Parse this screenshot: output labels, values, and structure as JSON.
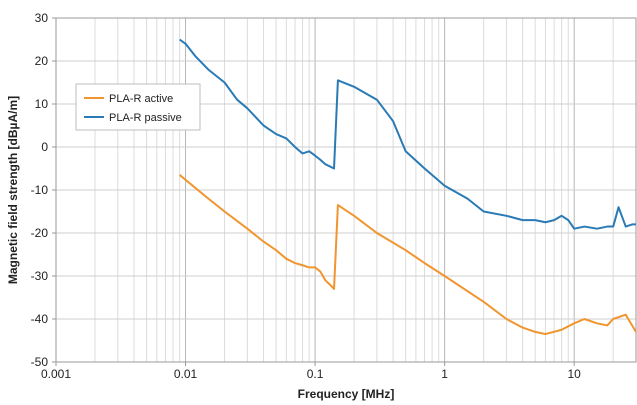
{
  "chart_data": {
    "type": "line",
    "xlabel": "Frequency [MHz]",
    "ylabel": "Magnetic field strength [dBµA/m]",
    "x_scale": "log",
    "xlim": [
      0.001,
      30
    ],
    "ylim": [
      -50,
      30
    ],
    "x_ticks": [
      0.001,
      0.01,
      0.1,
      1,
      10
    ],
    "x_tick_labels": [
      "0.001",
      "0.01",
      "0.1",
      "1",
      "10"
    ],
    "y_ticks": [
      -50,
      -40,
      -30,
      -20,
      -10,
      0,
      10,
      20,
      30
    ],
    "y_tick_labels": [
      "-50",
      "-40",
      "-30",
      "-20",
      "-10",
      "0",
      "10",
      "20",
      "30"
    ],
    "grid": true,
    "legend_position": "upper-left",
    "series": [
      {
        "name": "PLA-R active",
        "color": "#f0952f",
        "x": [
          0.009,
          0.015,
          0.02,
          0.03,
          0.04,
          0.05,
          0.06,
          0.07,
          0.08,
          0.09,
          0.1,
          0.11,
          0.12,
          0.13,
          0.14,
          0.15,
          0.2,
          0.3,
          0.5,
          0.7,
          1,
          2,
          3,
          4,
          5,
          6,
          8,
          10,
          12,
          15,
          18,
          20,
          25,
          30
        ],
        "y": [
          -6.5,
          -12,
          -15,
          -19,
          -22,
          -24,
          -26,
          -27,
          -27.5,
          -28,
          -28,
          -29,
          -31,
          -32,
          -33,
          -13.5,
          -16,
          -20,
          -24,
          -27,
          -30,
          -36,
          -40,
          -42,
          -43,
          -43.5,
          -42.5,
          -41,
          -40,
          -41,
          -41.5,
          -40,
          -39,
          -43
        ]
      },
      {
        "name": "PLA-R passive",
        "color": "#2a7ab5",
        "x": [
          0.009,
          0.01,
          0.012,
          0.015,
          0.02,
          0.025,
          0.03,
          0.04,
          0.05,
          0.06,
          0.07,
          0.08,
          0.09,
          0.1,
          0.11,
          0.12,
          0.14,
          0.15,
          0.2,
          0.3,
          0.4,
          0.5,
          0.7,
          1,
          1.5,
          2,
          3,
          4,
          5,
          6,
          7,
          8,
          9,
          10,
          12,
          15,
          18,
          20,
          22,
          25,
          28,
          30
        ],
        "y": [
          25,
          24,
          21,
          18,
          15,
          11,
          9,
          5,
          3,
          2,
          0,
          -1.5,
          -1,
          -2,
          -3,
          -4,
          -5,
          15.5,
          14,
          11,
          6,
          -1,
          -5,
          -9,
          -12,
          -15,
          -16,
          -17,
          -17,
          -17.5,
          -17,
          -16,
          -17,
          -19,
          -18.5,
          -19,
          -18.5,
          -18.5,
          -14,
          -18.5,
          -18,
          -18
        ]
      }
    ]
  }
}
